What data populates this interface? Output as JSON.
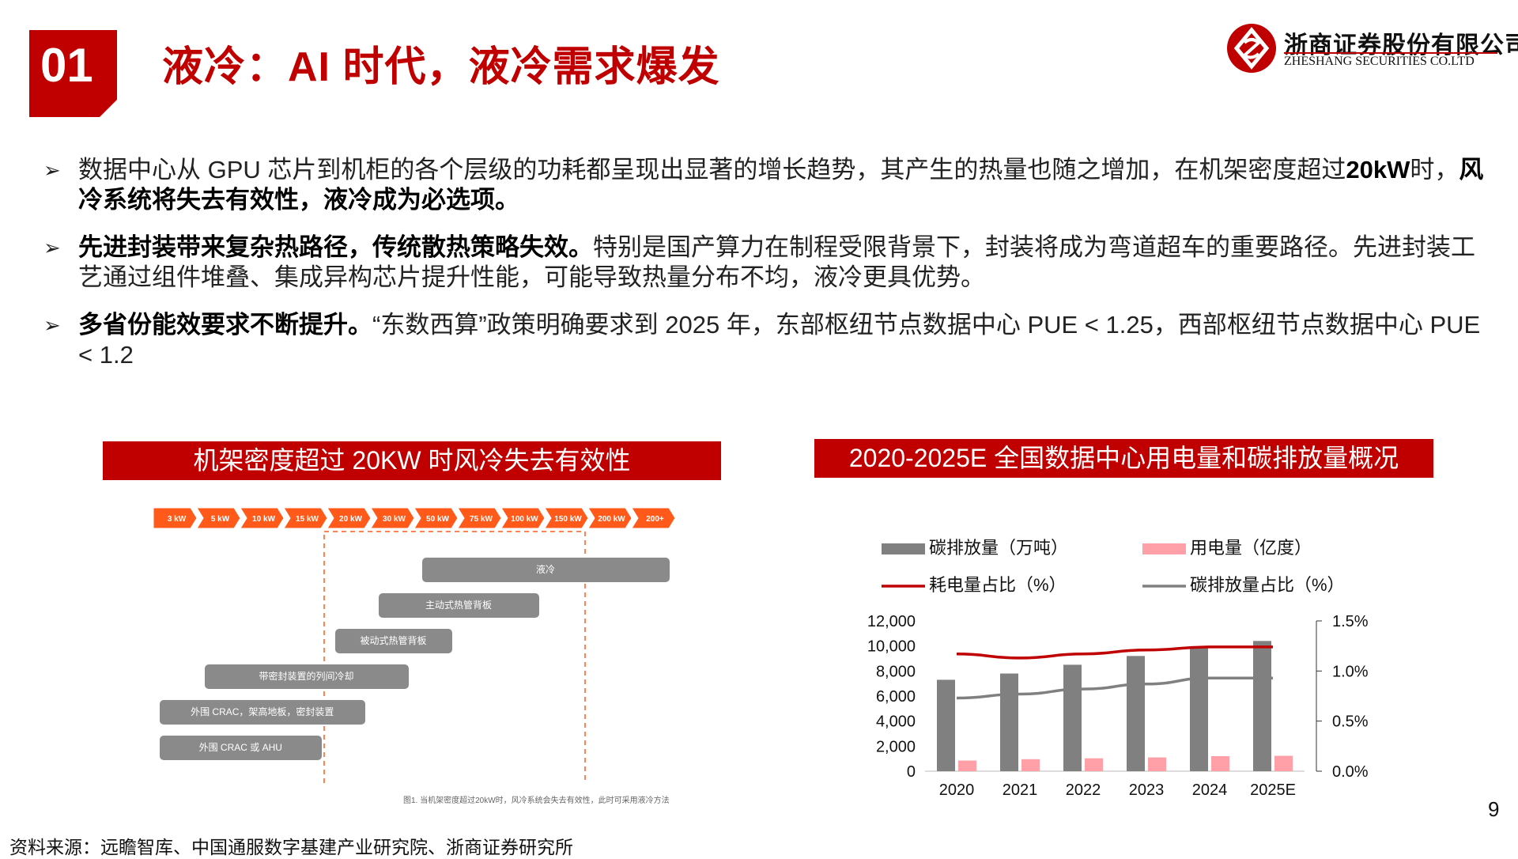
{
  "header": {
    "section_number": "01",
    "title": "液冷：AI 时代，液冷需求爆发",
    "logo_cn": "浙商证券股份有限公司",
    "logo_en": "ZHESHANG SECURITIES CO.LTD"
  },
  "bullets": [
    {
      "arrow": "➢",
      "parts": [
        {
          "text": "数据中心从 GPU 芯片到机柜的各个层级的功耗都呈现出显著的增长趋势，其产生的热量也随之增加，在机架密度超过",
          "bold": false
        },
        {
          "text": "20kW",
          "bold": true
        },
        {
          "text": "时，",
          "bold": false
        },
        {
          "text": "风冷系统将失去有效性，液冷成为必选项。",
          "bold": true
        }
      ]
    },
    {
      "arrow": "➢",
      "parts": [
        {
          "text": "先进封装带来复杂热路径，传统散热策略失效。",
          "bold": true
        },
        {
          "text": "特别是国产算力在制程受限背景下，封装将成为弯道超车的重要路径。先进封装工艺通过组件堆叠、集成异构芯片提升性能，可能导致热量分布不均，液冷更具优势。",
          "bold": false
        }
      ]
    },
    {
      "arrow": "➢",
      "parts": [
        {
          "text": "多省份能效要求不断提升。",
          "bold": true
        },
        {
          "text": "“东数西算”政策明确要求到 2025 年，东部枢纽节点数据中心 PUE < 1.25，西部枢纽节点数据中心 PUE < 1.2",
          "bold": false
        }
      ]
    }
  ],
  "left_panel_title": "机架密度超过 20KW 时风冷失去有效性",
  "right_panel_title": "2020-2025E 全国数据中心用电量和碳排放量概况",
  "chart_data": [
    {
      "type": "range-bar",
      "title": "机架密度超过 20KW 时风冷失去有效性",
      "axis_categories": [
        "3 kW",
        "5 kW",
        "10 kW",
        "15 kW",
        "20 kW",
        "30 kW",
        "50 kW",
        "75 kW",
        "100 kW",
        "150 kW",
        "200 kW",
        "200+"
      ],
      "threshold_range": [
        "15 kW",
        "150 kW"
      ],
      "bars": [
        {
          "label": "液冷",
          "from": "50 kW",
          "to": "200+"
        },
        {
          "label": "主动式热管背板",
          "from": "30 kW",
          "to": "100 kW"
        },
        {
          "label": "被动式热管背板",
          "from": "20 kW",
          "to": "50 kW"
        },
        {
          "label": "带密封装置的列间冷却",
          "from": "5 kW",
          "to": "30 kW"
        },
        {
          "label": "外围 CRAC，架高地板，密封装置",
          "from": "3 kW",
          "to": "20 kW"
        },
        {
          "label": "外围 CRAC 或 AHU",
          "from": "3 kW",
          "to": "15 kW"
        }
      ],
      "caption": "图1. 当机架密度超过20kW时，风冷系统会失去有效性，此时可采用液冷方法"
    },
    {
      "type": "bar+line",
      "title": "2020-2025E 全国数据中心用电量和碳排放量概况",
      "categories": [
        "2020",
        "2021",
        "2022",
        "2023",
        "2024",
        "2025E"
      ],
      "series": [
        {
          "name": "碳排放量（万吨）",
          "type": "bar",
          "axis": "left",
          "color": "#808080",
          "values": [
            7300,
            7800,
            8500,
            9200,
            9900,
            10400
          ]
        },
        {
          "name": "用电量（亿度）",
          "type": "bar",
          "axis": "left",
          "color": "#ffa0a8",
          "values": [
            850,
            960,
            1030,
            1100,
            1200,
            1230
          ]
        },
        {
          "name": "耗电量占比（%）",
          "type": "line",
          "axis": "right",
          "color": "#c00000",
          "values": [
            1.17,
            1.13,
            1.17,
            1.21,
            1.24,
            1.24
          ]
        },
        {
          "name": "碳排放量占比（%）",
          "type": "line",
          "axis": "right",
          "color": "#808080",
          "values": [
            0.73,
            0.77,
            0.82,
            0.87,
            0.93,
            0.93
          ]
        }
      ],
      "left_axis": {
        "min": 0,
        "max": 12000,
        "ticks": [
          0,
          2000,
          4000,
          6000,
          8000,
          10000,
          12000
        ],
        "tick_labels": [
          "0",
          "2,000",
          "4,000",
          "6,000",
          "8,000",
          "10,000",
          "12,000"
        ]
      },
      "right_axis": {
        "min": 0,
        "max": 1.5,
        "ticks": [
          0,
          0.5,
          1.0,
          1.5
        ],
        "tick_labels": [
          "0.0%",
          "0.5%",
          "1.0%",
          "1.5%"
        ]
      },
      "legend_position": "top"
    }
  ],
  "footer": {
    "source": "资料来源：远瞻智库、中国通服数字基建产业研究院、浙商证券研究所",
    "page_number": "9"
  },
  "colors": {
    "brand_red": "#c00000",
    "arrow_orange": "#ff5a1a",
    "box_gray": "#8a8a8a"
  }
}
